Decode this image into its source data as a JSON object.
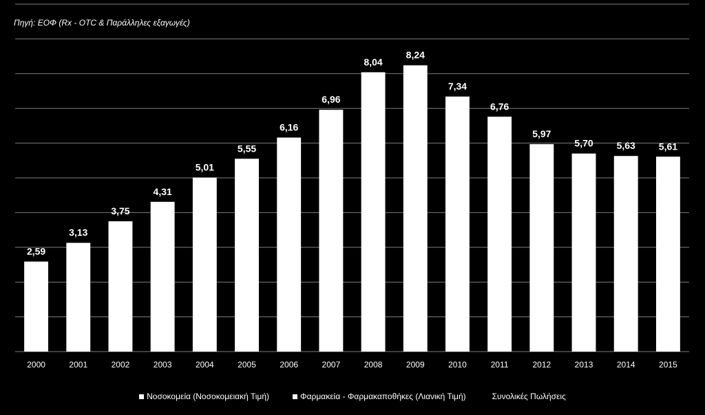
{
  "source_note": "Πηγή: ΕΟΦ  (Rx  - OTC & Παράλληλες εξαγωγές)",
  "legend": [
    {
      "label": "Νοσοκομεία (Νοσοκομειακή Τιμή)",
      "swatch": true
    },
    {
      "label": "Φαρμακεία - Φαρμακαποθήκες (Λιανική Τιμή)",
      "swatch": true
    },
    {
      "label": "Συνολικές Πωλήσεις",
      "swatch": false
    }
  ],
  "chart_data": {
    "type": "bar",
    "categories": [
      "2000",
      "2001",
      "2002",
      "2003",
      "2004",
      "2005",
      "2006",
      "2007",
      "2008",
      "2009",
      "2010",
      "2011",
      "2012",
      "2013",
      "2014",
      "2015"
    ],
    "values": [
      2.59,
      3.13,
      3.75,
      4.31,
      5.01,
      5.55,
      6.16,
      6.96,
      8.04,
      8.24,
      7.34,
      6.76,
      5.97,
      5.7,
      5.63,
      5.61
    ],
    "value_labels": [
      "2,59",
      "3,13",
      "3,75",
      "4,31",
      "5,01",
      "5,55",
      "6,16",
      "6,96",
      "8,04",
      "8,24",
      "7,34",
      "6,76",
      "5,97",
      "5,70",
      "5,63",
      "5,61"
    ],
    "ylim": [
      0,
      10
    ],
    "grid": true,
    "bar_color": "#ffffff",
    "grid_color": "#7f7f7f",
    "text_color": "#ffffff",
    "background": "#000000"
  }
}
